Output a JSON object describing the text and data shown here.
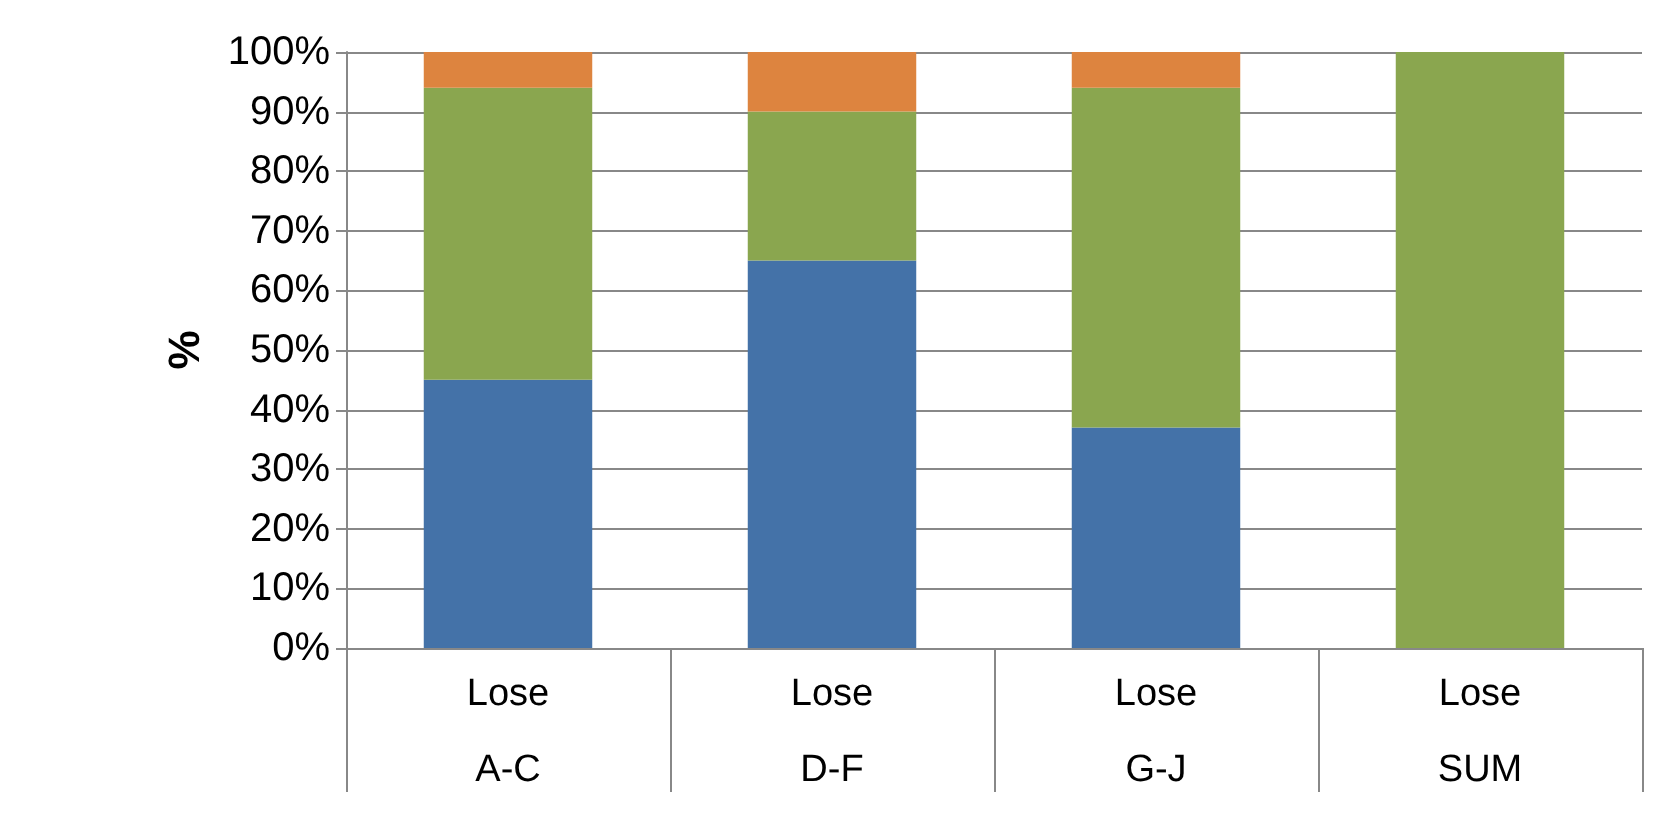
{
  "chart_data": {
    "type": "bar",
    "stacked": true,
    "ylabel": "%",
    "categories": [
      "Lose\nA-C",
      "Lose\nD-F",
      "Lose\nG-J",
      "Lose\nSUM"
    ],
    "series": [
      {
        "color": "#4472a8",
        "values": [
          45,
          65,
          37,
          0
        ]
      },
      {
        "color": "#8aa64f",
        "values": [
          49,
          25,
          57,
          100
        ]
      },
      {
        "color": "#dd843f",
        "values": [
          6,
          10,
          6,
          0
        ]
      }
    ],
    "ylim": [
      0,
      100
    ],
    "yticks": [
      {
        "value": 0,
        "label": "0%"
      },
      {
        "value": 10,
        "label": "10%"
      },
      {
        "value": 20,
        "label": "20%"
      },
      {
        "value": 30,
        "label": "30%"
      },
      {
        "value": 40,
        "label": "40%"
      },
      {
        "value": 50,
        "label": "50%"
      },
      {
        "value": 60,
        "label": "60%"
      },
      {
        "value": 70,
        "label": "70%"
      },
      {
        "value": 80,
        "label": "80%"
      },
      {
        "value": 90,
        "label": "90%"
      },
      {
        "value": 100,
        "label": "100%"
      }
    ],
    "grid": "y"
  }
}
